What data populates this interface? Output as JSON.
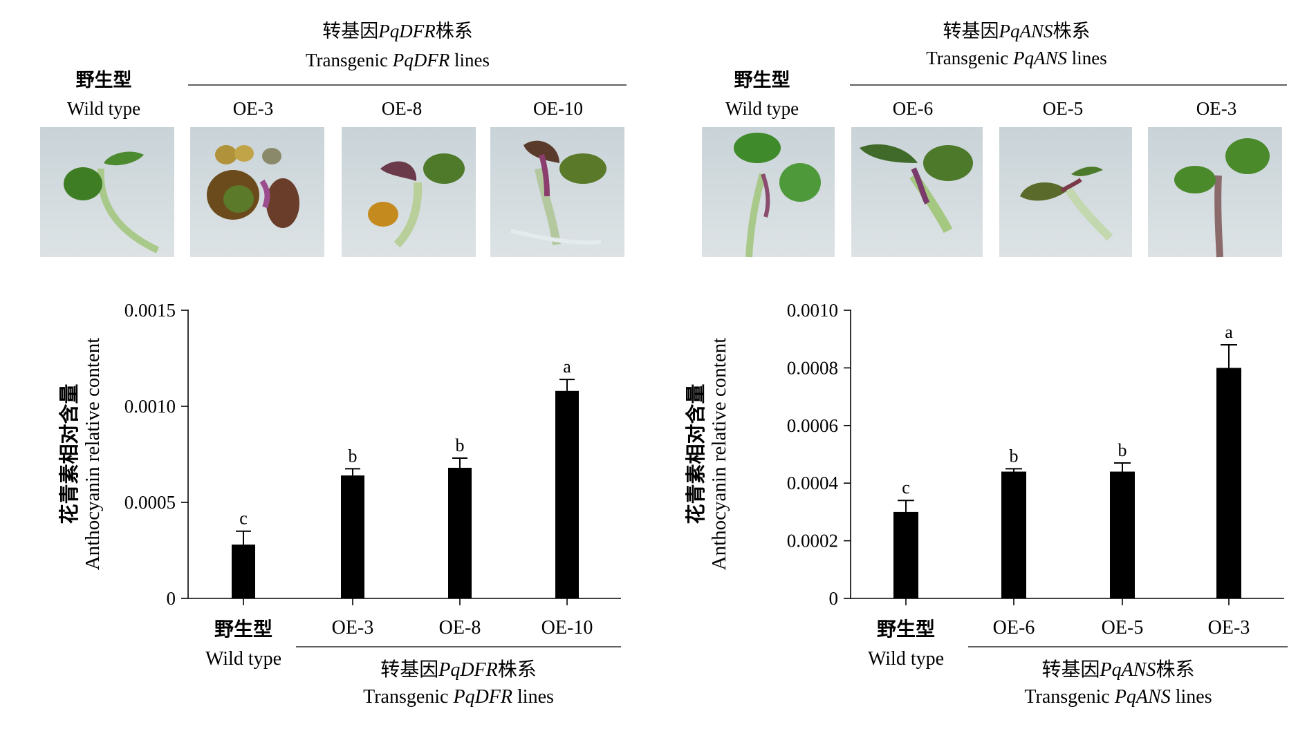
{
  "panels": [
    {
      "header_cn": "转基因",
      "header_gene": "PqDFR",
      "header_suffix_cn": "株系",
      "header_en_prefix": "Transgenic ",
      "header_en_gene": "PqDFR",
      "header_en_suffix": " lines",
      "wt_cn": "野生型",
      "wt_en": "Wild type",
      "photo_labels": [
        "OE-3",
        "OE-8",
        "OE-10"
      ],
      "photo_icons": [
        "seedling-photo",
        "seedling-photo",
        "seedling-photo",
        "seedling-photo"
      ]
    },
    {
      "header_cn": "转基因",
      "header_gene": "PqANS",
      "header_suffix_cn": "株系",
      "header_en_prefix": "Transgenic ",
      "header_en_gene": "PqANS",
      "header_en_suffix": " lines",
      "wt_cn": "野生型",
      "wt_en": "Wild type",
      "photo_labels": [
        "OE-6",
        "OE-5",
        "OE-3"
      ],
      "photo_icons": [
        "seedling-photo",
        "seedling-photo",
        "seedling-photo",
        "seedling-photo"
      ]
    }
  ],
  "chart_data": [
    {
      "type": "bar",
      "ylabel_cn": "花青素相对含量",
      "ylabel": "Anthocyanin relative content",
      "ylim": [
        0,
        0.0015
      ],
      "yticks": [
        0,
        0.0005,
        0.001,
        0.0015
      ],
      "ytick_labels": [
        "0",
        "0.0005",
        "0.0010",
        "0.0015"
      ],
      "categories": [
        "野生型|Wild type",
        "OE-3",
        "OE-8",
        "OE-10"
      ],
      "category_cn": "野生型",
      "category_en": "Wild type",
      "group_label_cn": "转基因",
      "group_label_gene": "PqDFR",
      "group_label_suffix_cn": "株系",
      "group_label_en_prefix": "Transgenic ",
      "group_label_en_gene": "PqDFR",
      "group_label_en_suffix": " lines",
      "values": [
        0.00028,
        0.00064,
        0.00068,
        0.00108
      ],
      "errors": [
        7e-05,
        3.5e-05,
        5e-05,
        6e-05
      ],
      "significance": [
        "c",
        "b",
        "b",
        "a"
      ],
      "bar_color": "#000000"
    },
    {
      "type": "bar",
      "ylabel_cn": "花青素相对含量",
      "ylabel": "Anthocyanin relative content",
      "ylim": [
        0,
        0.001
      ],
      "yticks": [
        0,
        0.0002,
        0.0004,
        0.0006,
        0.0008,
        0.001
      ],
      "ytick_labels": [
        "0",
        "0.0002",
        "0.0004",
        "0.0006",
        "0.0008",
        "0.0010"
      ],
      "categories": [
        "野生型|Wild type",
        "OE-6",
        "OE-5",
        "OE-3"
      ],
      "category_cn": "野生型",
      "category_en": "Wild type",
      "group_label_cn": "转基因",
      "group_label_gene": "PqANS",
      "group_label_suffix_cn": "株系",
      "group_label_en_prefix": "Transgenic ",
      "group_label_en_gene": "PqANS",
      "group_label_en_suffix": " lines",
      "values": [
        0.0003,
        0.00044,
        0.00044,
        0.0008
      ],
      "errors": [
        4e-05,
        1e-05,
        3e-05,
        8e-05
      ],
      "significance": [
        "c",
        "b",
        "b",
        "a"
      ],
      "bar_color": "#000000"
    }
  ]
}
